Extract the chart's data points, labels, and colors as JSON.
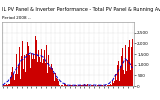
{
  "title": "IL PV Panel & Inverter Performance - Total PV Panel & Running Average Power Output",
  "subtitle": "Period 2008 --",
  "bg_color": "#ffffff",
  "plot_bg_color": "#ffffff",
  "bar_color": "#cc0000",
  "avg_line_color": "#0000cc",
  "grid_color": "#bbbbbb",
  "text_color": "#000000",
  "ylim": [
    0,
    3000
  ],
  "ytick_vals": [
    2500,
    2000,
    1500,
    1000,
    500,
    0
  ],
  "ytick_labels": [
    "2,500",
    "2,000",
    "1,500",
    "1,000",
    "500",
    "0"
  ],
  "n_bars": 140,
  "seed": 7,
  "title_fontsize": 3.5,
  "subtitle_fontsize": 3.0,
  "tick_fontsize": 3.0
}
